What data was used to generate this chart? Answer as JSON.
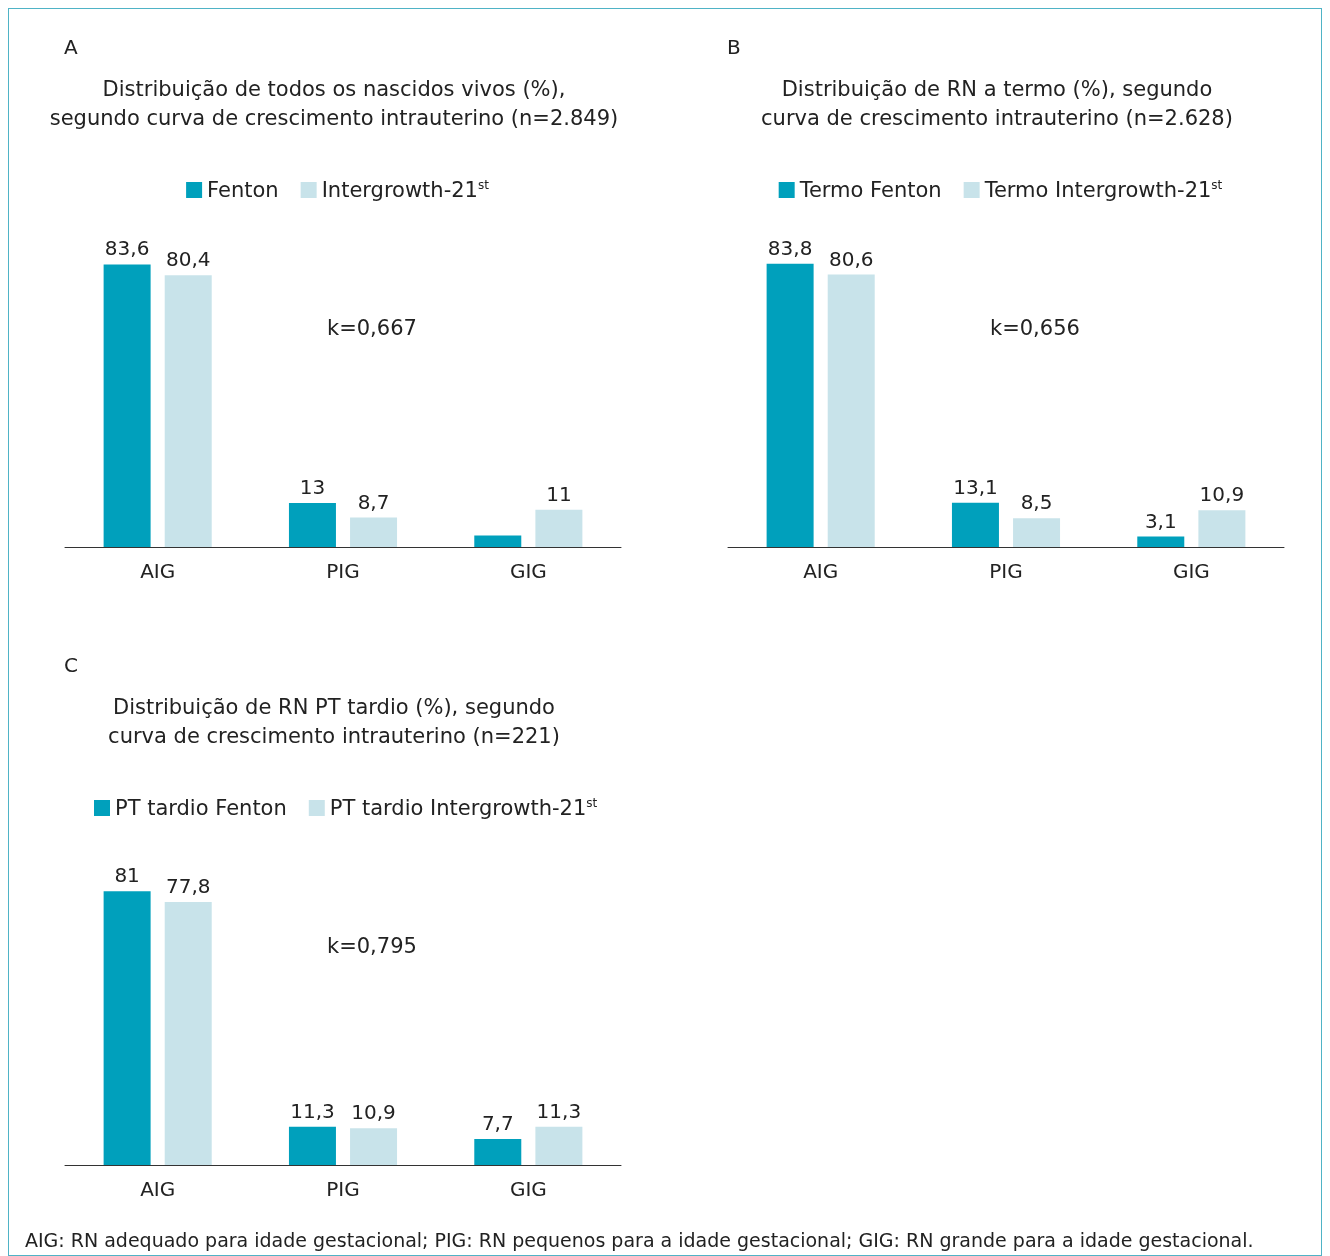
{
  "chart_data": [
    {
      "type": "bar",
      "title": "Distribuição de todos os nascidos vivos (%),\nsegundo curva de crescimento intrauterino (n=2.849)",
      "categories": [
        "AIG",
        "PIG",
        "GIG"
      ],
      "legend": "top",
      "annotations": [
        "A",
        "k=0,667"
      ],
      "series": [
        {
          "name": "Fenton",
          "color": "#00a0bc",
          "values": [
            83.6,
            13,
            3.4
          ],
          "value_labels": [
            "83,6",
            "13",
            null
          ]
        },
        {
          "name": "Intergrowth-21$^{st}$",
          "color": "#c8e3ea",
          "values": [
            80.4,
            8.7,
            11
          ],
          "value_labels": [
            "80,4",
            "8,7",
            "11"
          ]
        }
      ]
    },
    {
      "type": "bar",
      "title": "Distribuição de RN a termo (%), segundo\ncurva de crescimento intrauterino (n=2.628)",
      "categories": [
        "AIG",
        "PIG",
        "GIG"
      ],
      "legend": "top",
      "annotations": [
        "B",
        "k=0,656"
      ],
      "series": [
        {
          "name": "Termo Fenton",
          "color": "#00a0bc",
          "values": [
            83.8,
            13.1,
            3.1
          ],
          "value_labels": [
            "83,8",
            "13,1",
            "3,1"
          ]
        },
        {
          "name": "Termo Intergrowth-21$^{st}$",
          "color": "#c8e3ea",
          "values": [
            80.6,
            8.5,
            10.9
          ],
          "value_labels": [
            "80,6",
            "8,5",
            "10,9"
          ]
        }
      ]
    },
    {
      "type": "bar",
      "title": "Distribuição de RN PT tardio (%), segundo\ncurva de crescimento intrauterino (n=221)",
      "categories": [
        "AIG",
        "PIG",
        "GIG"
      ],
      "legend": "top left",
      "annotations": [
        "C",
        "k=0,795",
        "AIG: RN adequado para idade gestacional; PIG: RN pequenos para a idade gestacional; GIG: RN grande para a idade gestacional."
      ],
      "series": [
        {
          "name": "PT tardio Fenton",
          "color": "#00a0bc",
          "values": [
            81,
            11.3,
            7.7
          ],
          "value_labels": [
            "81",
            "11,3",
            "7,7"
          ]
        },
        {
          "name": "PT tardio Intergrowth-21$^{st}$",
          "color": "#c8e3ea",
          "values": [
            77.8,
            10.9,
            11.3
          ],
          "value_labels": [
            "77,8",
            "10,9",
            "11,3"
          ]
        }
      ]
    }
  ]
}
